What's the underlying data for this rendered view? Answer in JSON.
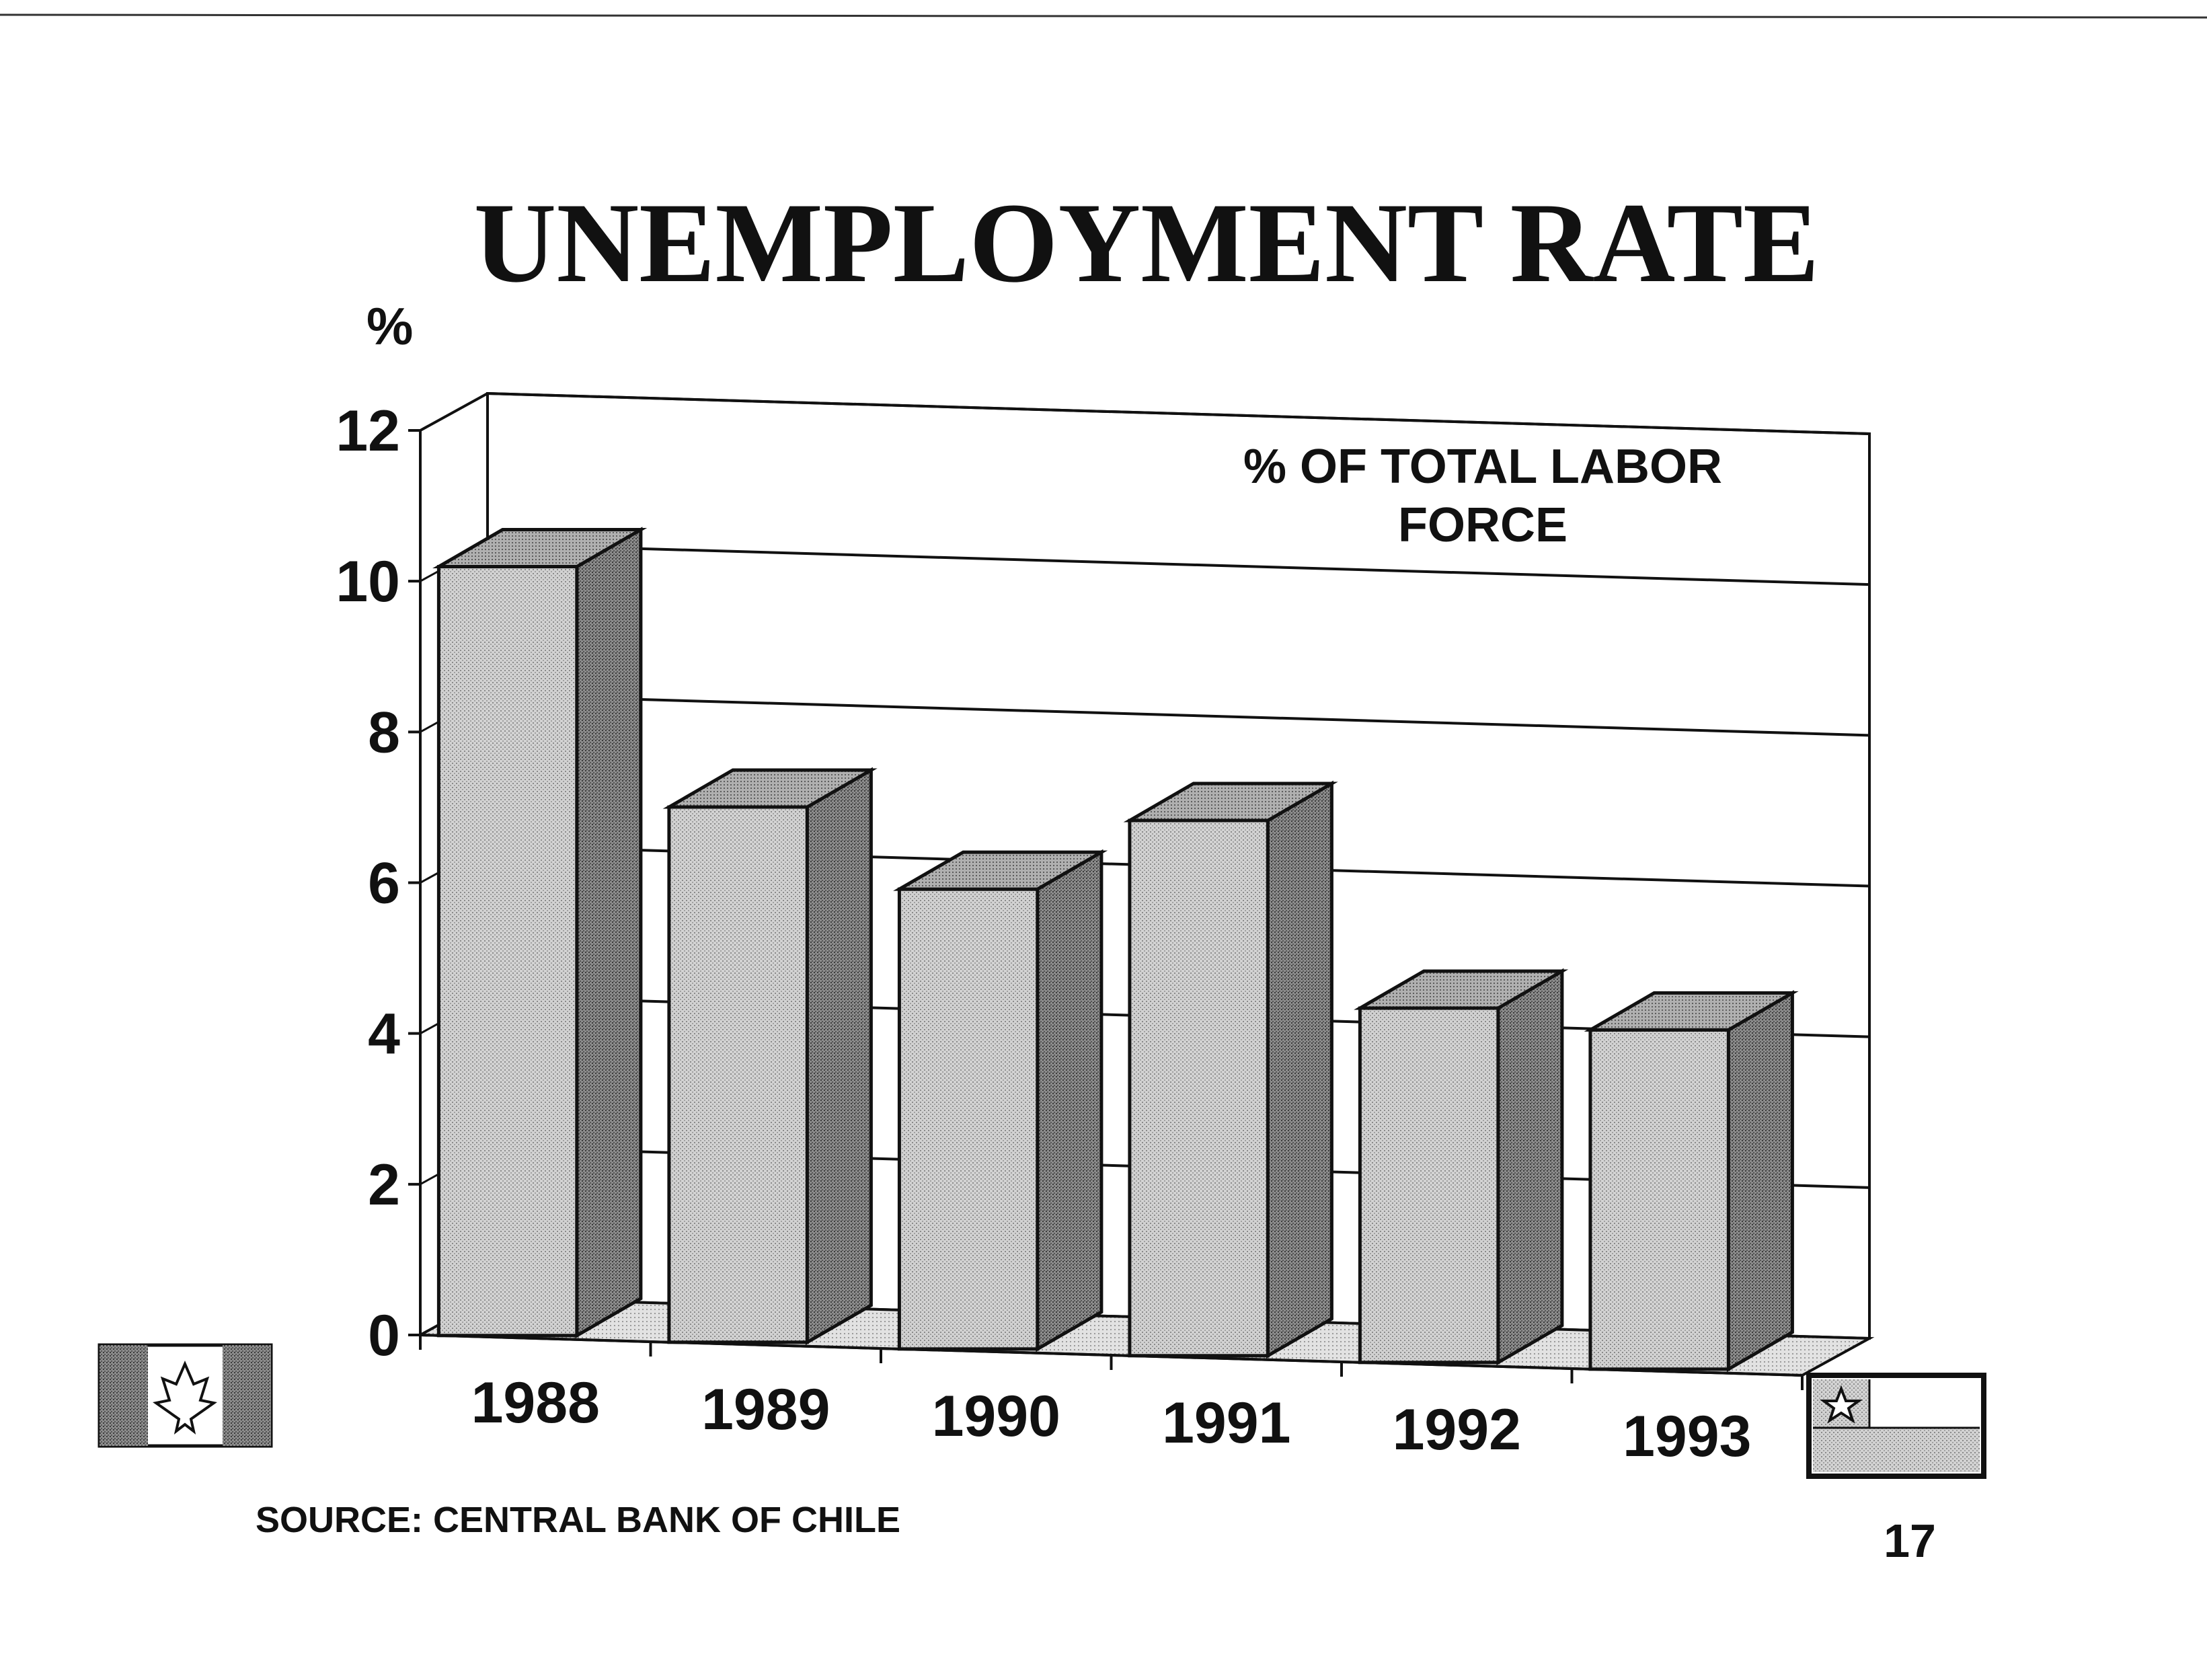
{
  "page": {
    "title": "UNEMPLOYMENT RATE",
    "source": "SOURCE: CENTRAL BANK OF CHILE",
    "page_number": "17"
  },
  "flags": {
    "left": "canada-flag-icon",
    "right": "chile-flag-icon"
  },
  "colors": {
    "ink": "#111111",
    "bar_front": "#c4c4c4",
    "bar_side": "#7e7e7e",
    "bar_top": "#9a9a9a",
    "floor": "#d6d6d6"
  },
  "chart_data": {
    "type": "bar",
    "title": "UNEMPLOYMENT RATE",
    "ylabel": "%",
    "annotation": [
      "% OF TOTAL LABOR",
      "FORCE"
    ],
    "categories": [
      "1988",
      "1989",
      "1990",
      "1991",
      "1992",
      "1993"
    ],
    "values": [
      10.2,
      7.1,
      6.1,
      7.1,
      4.7,
      4.5
    ],
    "ylim": [
      0,
      12
    ],
    "yticks": [
      "0",
      "2",
      "4",
      "6",
      "8",
      "10",
      "12"
    ],
    "grid": true,
    "three_d": true
  }
}
